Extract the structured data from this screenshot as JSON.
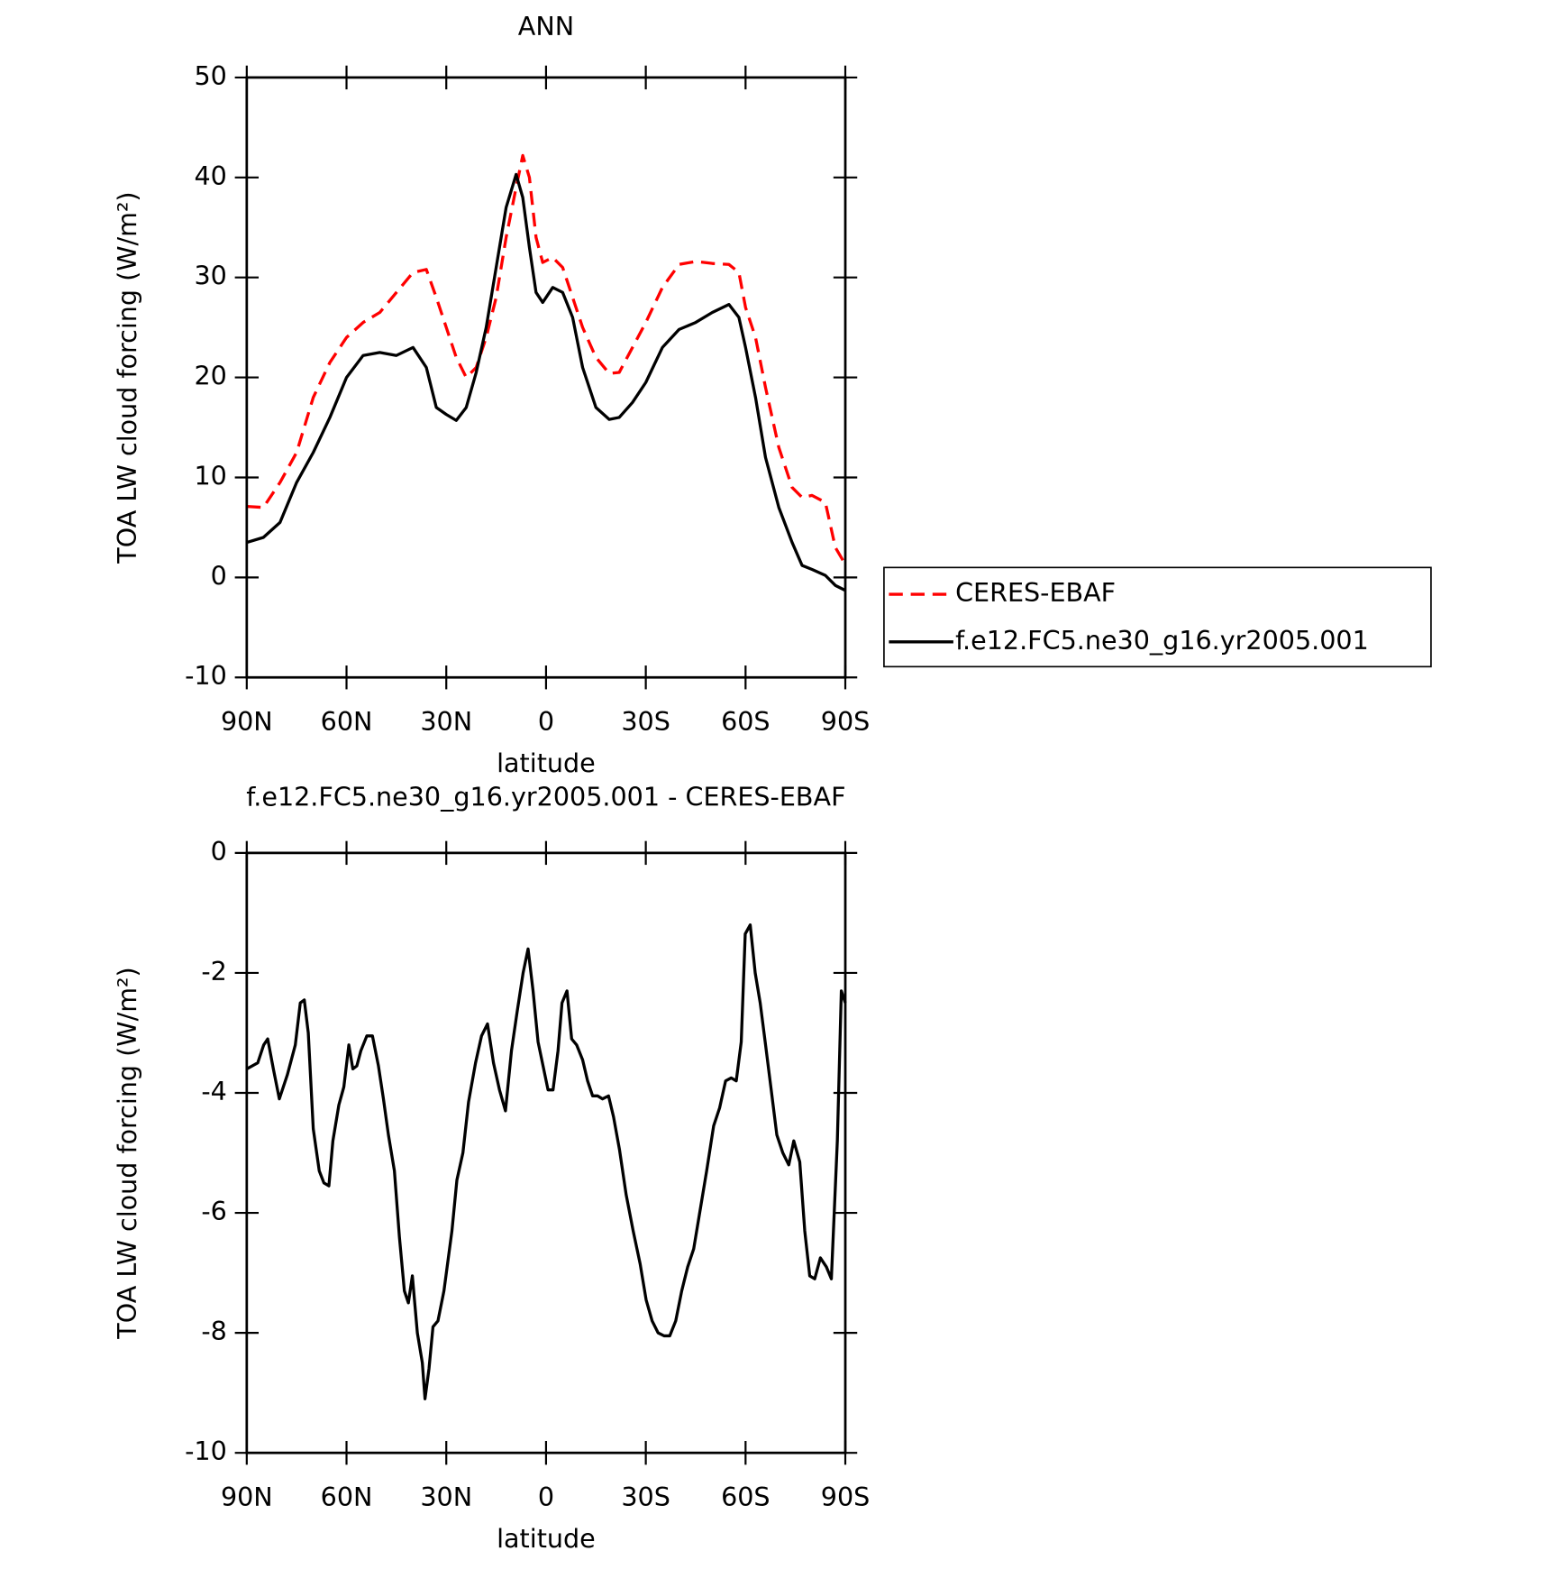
{
  "chart_data": [
    {
      "type": "line",
      "title": "ANN",
      "xlabel": "latitude",
      "ylabel": "TOA LW cloud forcing (W/m²)",
      "x": [
        90,
        85,
        80,
        75,
        70,
        65,
        60,
        55,
        50,
        45,
        40,
        36,
        33,
        30,
        27,
        24,
        21,
        18,
        15,
        12,
        9,
        7,
        5,
        3,
        1,
        -2,
        -5,
        -8,
        -11,
        -15,
        -19,
        -22,
        -26,
        -30,
        -35,
        -40,
        -45,
        -50,
        -55,
        -58,
        -60,
        -63,
        -66,
        -70,
        -74,
        -77,
        -80,
        -84,
        -87,
        -90
      ],
      "series": [
        {
          "name": "CERES-EBAF",
          "color": "#ff0000",
          "dash": true,
          "values": [
            7.1,
            7.0,
            9.5,
            12.5,
            18,
            21.5,
            24,
            25.5,
            26.5,
            28.5,
            30.5,
            30.8,
            28,
            25,
            22,
            20,
            21,
            24,
            28,
            34,
            39,
            42.2,
            40,
            34,
            31.5,
            32,
            31,
            28,
            25,
            22,
            20.4,
            20.5,
            23,
            25.5,
            29,
            31.3,
            31.6,
            31.4,
            31.3,
            30.5,
            27,
            24,
            19,
            13,
            9,
            8,
            8.2,
            7.5,
            3,
            1.3
          ]
        },
        {
          "name": "f.e12.FC5.ne30_g16.yr2005.001",
          "color": "#000000",
          "dash": false,
          "values": [
            3.5,
            4,
            5.5,
            9.5,
            12.5,
            16,
            20,
            22.2,
            22.5,
            22.2,
            23,
            21,
            17,
            16.3,
            15.7,
            17,
            20.5,
            25,
            31,
            37,
            40.3,
            38,
            33,
            28.5,
            27.5,
            29,
            28.5,
            26,
            21,
            17,
            15.8,
            16,
            17.5,
            19.5,
            23,
            24.8,
            25.5,
            26.5,
            27.3,
            26,
            23,
            18,
            12,
            7,
            3.5,
            1.2,
            0.8,
            0.2,
            -0.8,
            -1.3
          ]
        }
      ],
      "xlim": [
        90,
        -90
      ],
      "xticks": [
        {
          "value": 90,
          "label": "90N"
        },
        {
          "value": 60,
          "label": "60N"
        },
        {
          "value": 30,
          "label": "30N"
        },
        0,
        {
          "value": -30,
          "label": "30S"
        },
        {
          "value": -60,
          "label": "60S"
        },
        {
          "value": -90,
          "label": "90S"
        }
      ],
      "ylim": [
        -10,
        50
      ],
      "yticks": [
        -10,
        0,
        10,
        20,
        30,
        40,
        50
      ],
      "legend": "right"
    },
    {
      "type": "line",
      "title": "f.e12.FC5.ne30_g16.yr2005.001 - CERES-EBAF",
      "xlabel": "latitude",
      "ylabel": "TOA LW cloud forcing (W/m²)",
      "x": [
        90,
        86.7,
        84.9,
        83.7,
        82.0,
        80.2,
        77.8,
        75.4,
        73.9,
        72.7,
        71.5,
        70.0,
        68.2,
        66.8,
        65.3,
        64.1,
        62.3,
        60.8,
        59.3,
        58.1,
        56.9,
        55.7,
        53.9,
        52.2,
        50.4,
        48.9,
        47.4,
        45.6,
        44.1,
        42.6,
        41.4,
        40.2,
        38.7,
        37.2,
        36.4,
        35.2,
        34.0,
        32.5,
        30.7,
        28.3,
        26.8,
        25.0,
        23.3,
        21.2,
        19.4,
        17.6,
        15.8,
        14.0,
        12.2,
        10.4,
        8.7,
        6.9,
        5.4,
        3.9,
        2.4,
        0.9,
        -0.6,
        -2.1,
        -3.6,
        -4.8,
        -6.3,
        -7.7,
        -9.2,
        -11.0,
        -12.5,
        -14.0,
        -15.5,
        -17.0,
        -18.8,
        -20.3,
        -22.1,
        -24.1,
        -26.2,
        -28.3,
        -30.1,
        -31.9,
        -33.7,
        -35.5,
        -37.2,
        -39.0,
        -40.8,
        -42.6,
        -44.4,
        -46.2,
        -48.3,
        -50.4,
        -52.2,
        -54.0,
        -55.7,
        -57.2,
        -58.7,
        -59.9,
        -61.4,
        -62.9,
        -64.4,
        -65.9,
        -67.6,
        -69.4,
        -71.2,
        -73.0,
        -74.5,
        -76.3,
        -77.8,
        -79.3,
        -80.8,
        -82.5,
        -84.3,
        -85.8,
        -87.6,
        -88.8,
        -90
      ],
      "values": [
        -3.6,
        -3.5,
        -3.2,
        -3.1,
        -3.6,
        -4.1,
        -3.7,
        -3.2,
        -2.5,
        -2.45,
        -3,
        -4.6,
        -5.3,
        -5.5,
        -5.55,
        -4.8,
        -4.2,
        -3.9,
        -3.2,
        -3.6,
        -3.55,
        -3.3,
        -3.05,
        -3.05,
        -3.55,
        -4.1,
        -4.7,
        -5.3,
        -6.4,
        -7.3,
        -7.5,
        -7.05,
        -8,
        -8.5,
        -9.1,
        -8.6,
        -7.9,
        -7.8,
        -7.3,
        -6.3,
        -5.45,
        -5,
        -4.15,
        -3.5,
        -3.05,
        -2.85,
        -3.5,
        -3.95,
        -4.3,
        -3.3,
        -2.65,
        -2,
        -1.6,
        -2.3,
        -3.15,
        -3.55,
        -3.95,
        -3.95,
        -3.3,
        -2.5,
        -2.3,
        -3.1,
        -3.2,
        -3.45,
        -3.8,
        -4.05,
        -4.05,
        -4.1,
        -4.05,
        -4.4,
        -4.95,
        -5.7,
        -6.3,
        -6.85,
        -7.45,
        -7.8,
        -8,
        -8.05,
        -8.05,
        -7.8,
        -7.3,
        -6.9,
        -6.6,
        -6,
        -5.3,
        -4.55,
        -4.25,
        -3.8,
        -3.75,
        -3.8,
        -3.15,
        -1.35,
        -1.2,
        -2,
        -2.5,
        -3.15,
        -3.9,
        -4.7,
        -5,
        -5.2,
        -4.8,
        -5.15,
        -6.3,
        -7.05,
        -7.1,
        -6.75,
        -6.9,
        -7.1,
        -4.8,
        -2.3,
        -2.5
      ],
      "color": "#000000",
      "xlim": [
        90,
        -90
      ],
      "xticks": [
        {
          "value": 90,
          "label": "90N"
        },
        {
          "value": 60,
          "label": "60N"
        },
        {
          "value": 30,
          "label": "30N"
        },
        0,
        {
          "value": -30,
          "label": "30S"
        },
        {
          "value": -60,
          "label": "60S"
        },
        {
          "value": -90,
          "label": "90S"
        }
      ],
      "ylim": [
        -10,
        0
      ],
      "yticks": [
        -10,
        -8,
        -6,
        -4,
        -2,
        0
      ]
    }
  ]
}
